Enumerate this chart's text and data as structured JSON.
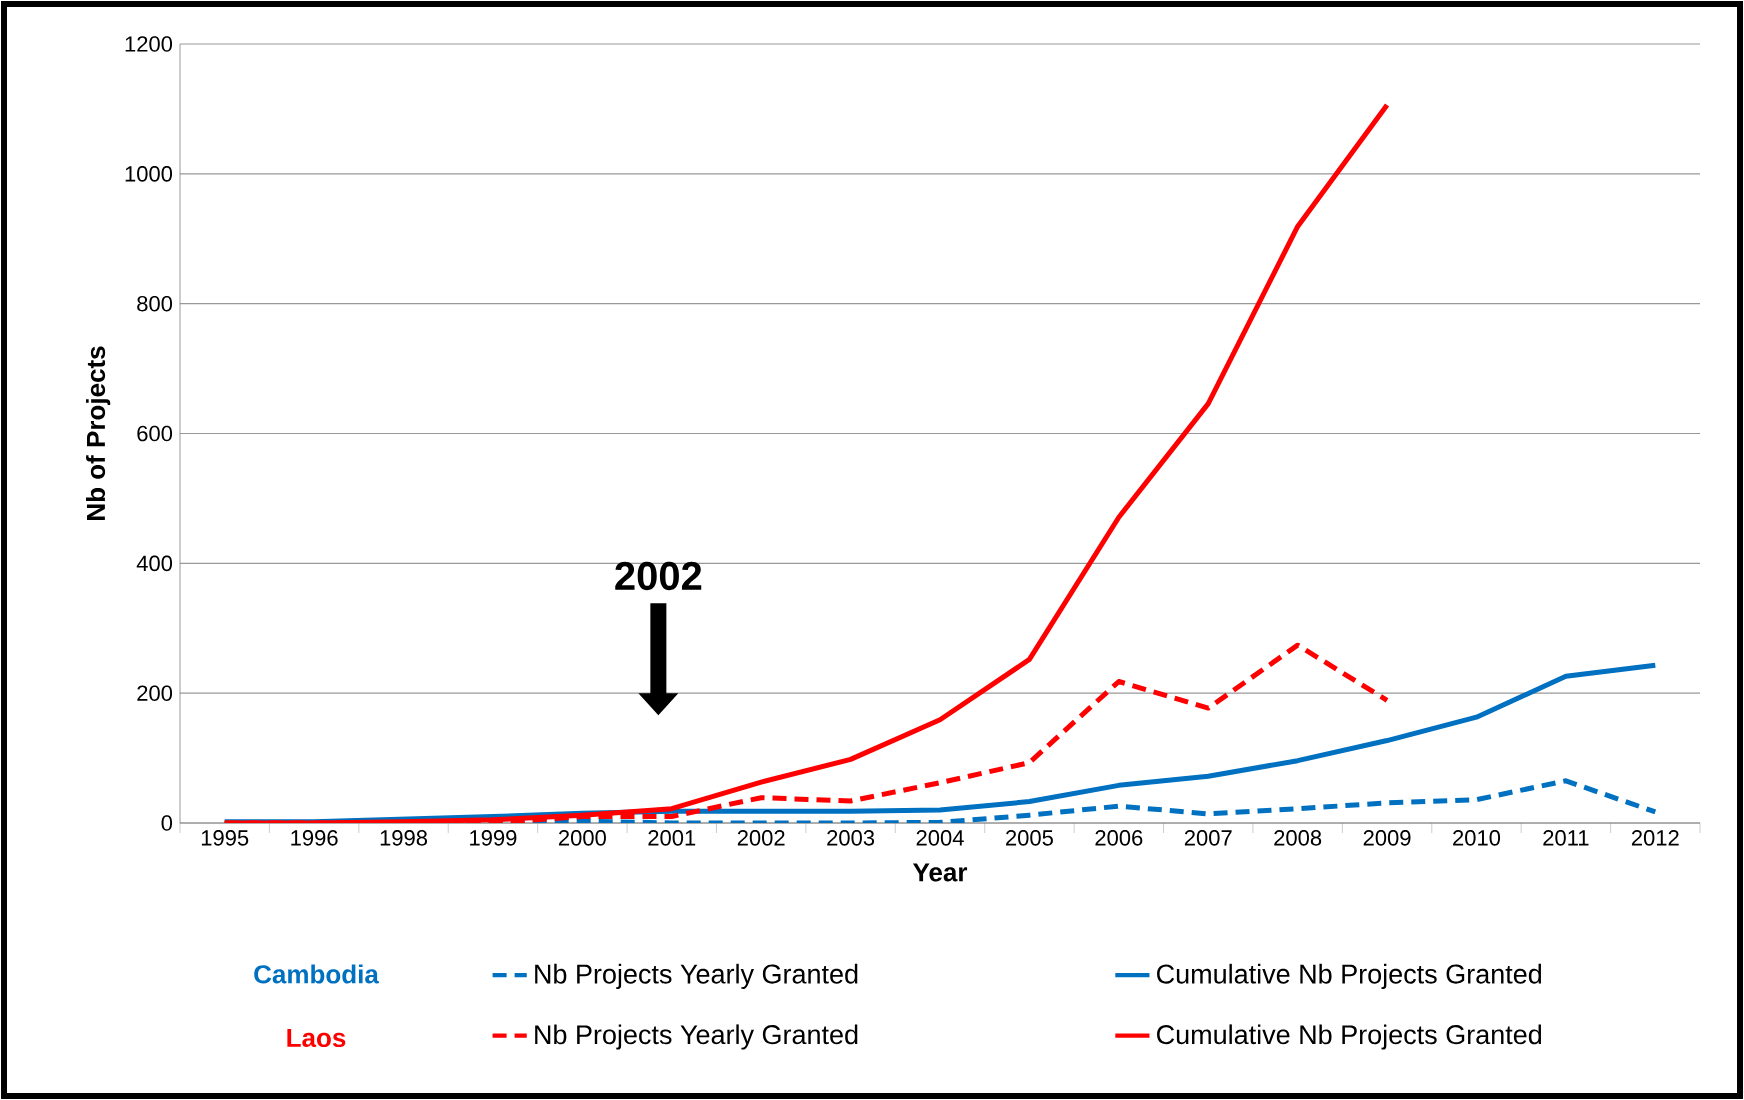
{
  "chart_data": {
    "type": "line",
    "xlabel": "Year",
    "ylabel": "Nb of Projects",
    "categories": [
      "1995",
      "1996",
      "1998",
      "1999",
      "2000",
      "2001",
      "2002",
      "2003",
      "2004",
      "2005",
      "2006",
      "2007",
      "2008",
      "2009",
      "2010",
      "2011",
      "2012"
    ],
    "series": [
      {
        "name": "Nb Projects Yearly Granted",
        "color": "#0070c0",
        "line_style": "dashed",
        "values": [
          0,
          0,
          2,
          3,
          3,
          0,
          0,
          0,
          1,
          12,
          26,
          14,
          22,
          31,
          36,
          65,
          17
        ]
      },
      {
        "name": "Cumulative Nb Projects Granted",
        "color": "#0070c0",
        "line_style": "solid",
        "values": [
          2,
          2,
          6,
          10,
          15,
          18,
          18,
          18,
          20,
          33,
          58,
          72,
          96,
          127,
          163,
          226,
          243
        ]
      },
      {
        "name": "Nb Projects Yearly Granted",
        "color": "#ff0000",
        "line_style": "dashed",
        "values": [
          0,
          0,
          0,
          0,
          10,
          10,
          39,
          34,
          62,
          93,
          218,
          177,
          274,
          189,
          null,
          null,
          null
        ]
      },
      {
        "name": "Cumulative Nb Projects Granted",
        "color": "#ff0000",
        "line_style": "solid",
        "values": [
          0,
          0,
          2,
          5,
          12,
          22,
          63,
          98,
          159,
          252,
          471,
          646,
          919,
          1106,
          null,
          null,
          null
        ]
      }
    ],
    "ylim": [
      0,
      1200
    ],
    "yticks": [
      0,
      200,
      400,
      600,
      800,
      1000,
      1200
    ],
    "grid": "y",
    "legend": "bottom",
    "marker": "none",
    "annotations": [
      "Cambodia",
      "Laos",
      "2002"
    ]
  }
}
